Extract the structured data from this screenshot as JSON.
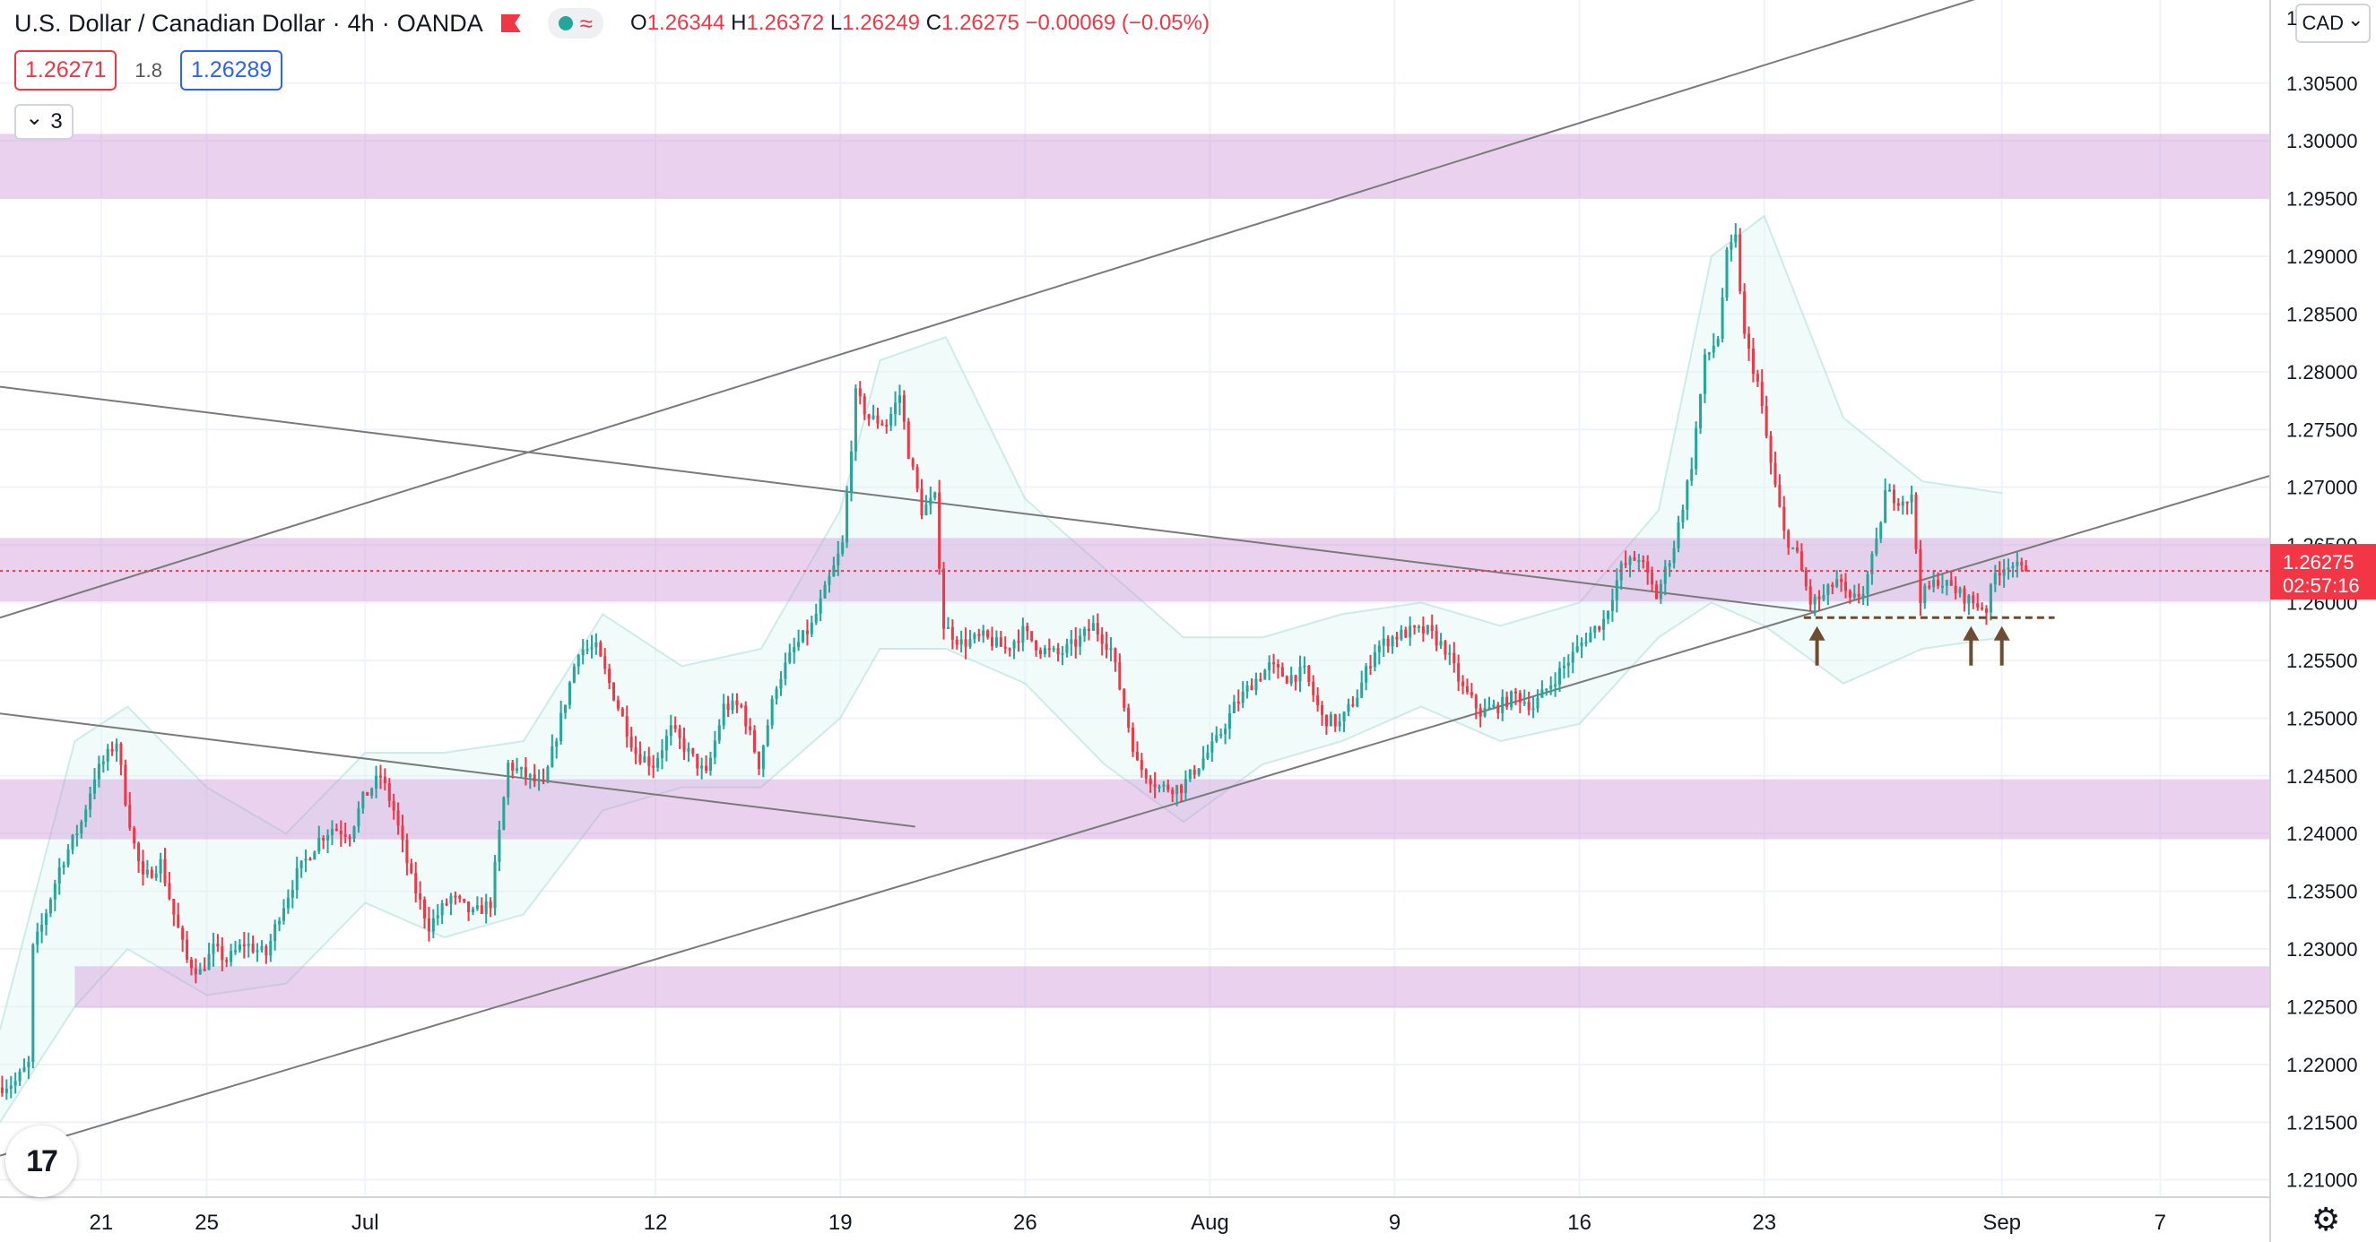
{
  "header": {
    "symbol_name": "U.S. Dollar / Canadian Dollar",
    "sep": "·",
    "interval": "4h",
    "broker": "OANDA",
    "wave_glyph": "≈",
    "ohlc": {
      "o_label": "O",
      "o": "1.26344",
      "h_label": "H",
      "h": "1.26372",
      "l_label": "L",
      "l": "1.26249",
      "c_label": "C",
      "c": "1.26275",
      "change": "−0.00069 (−0.05%)"
    }
  },
  "trade": {
    "sell": "1.26271",
    "spread": "1.8",
    "buy": "1.26289"
  },
  "indicators_toggle": {
    "chevron": "⌄",
    "count": "3"
  },
  "currency_button": {
    "label": "CAD",
    "chevron": "⌄",
    "edge_digit": "1"
  },
  "price_tag": {
    "price": "1.26275",
    "countdown": "02:57:16"
  },
  "colors": {
    "up": "#26a69a",
    "down": "#f23645",
    "zone": "#ce93d8",
    "channel": "#7a7a7a",
    "bollinger": "#b2dfdb",
    "support": "#6d4c2f",
    "price_line": "#f23645"
  },
  "chart_data": {
    "type": "candlestick",
    "x_tick_labels": [
      "21",
      "25",
      "Jul",
      "12",
      "19",
      "26",
      "Aug",
      "9",
      "16",
      "23",
      "Sep",
      "7"
    ],
    "x_tick_dates": [
      "2021-06-21",
      "2021-06-25",
      "2021-07-01",
      "2021-07-12",
      "2021-07-19",
      "2021-07-26",
      "2021-08-02",
      "2021-08-09",
      "2021-08-16",
      "2021-08-23",
      "2021-09-01",
      "2021-09-07"
    ],
    "y_tick_labels": [
      "1.30500",
      "1.30000",
      "1.29500",
      "1.29000",
      "1.28500",
      "1.28000",
      "1.27500",
      "1.27000",
      "1.26500",
      "1.26000",
      "1.25500",
      "1.25000",
      "1.24500",
      "1.24000",
      "1.23500",
      "1.23000",
      "1.22500",
      "1.22000",
      "1.21500",
      "1.21000"
    ],
    "ylim": [
      1.2085,
      1.3122
    ],
    "xlim": [
      "2021-06-17T04:00",
      "2021-09-11T04:00"
    ],
    "last_price": 1.26275,
    "zones": [
      {
        "from": 1.295,
        "to": 1.3006,
        "start": "2021-06-17"
      },
      {
        "from": 1.2601,
        "to": 1.2656,
        "start": "2021-06-17"
      },
      {
        "from": 1.2395,
        "to": 1.2447,
        "start": "2021-06-17"
      },
      {
        "from": 1.2249,
        "to": 1.2285,
        "start": "2021-06-20"
      }
    ],
    "trendlines": [
      {
        "from": [
          "2021-06-17T04:00",
          1.2121
        ],
        "to": [
          "2021-09-11T04:00",
          1.271
        ],
        "role": "channel-support"
      },
      {
        "from": [
          "2021-06-17T04:00",
          1.2587
        ],
        "to": [
          "2021-09-01T00:00",
          1.313
        ],
        "role": "channel-resistance"
      },
      {
        "from": [
          "2021-06-17T04:00",
          1.2787
        ],
        "to": [
          "2021-08-25T00:00",
          1.2592
        ],
        "role": "descending"
      },
      {
        "from": [
          "2021-06-17T04:00",
          1.2504
        ],
        "to": [
          "2021-07-21T20:00",
          1.2406
        ],
        "role": "descending-lower"
      }
    ],
    "support_level": {
      "value": 1.2587,
      "from": "2021-08-24T12:00",
      "to": "2021-09-03T00:00"
    },
    "arrows": [
      {
        "time": "2021-08-25T00:00",
        "price": 1.2575
      },
      {
        "time": "2021-08-30T20:00",
        "price": 1.2575
      },
      {
        "time": "2021-09-01T00:00",
        "price": 1.2575
      }
    ],
    "candle_interval_hours": 4,
    "path_start": "2021-06-17T04:00",
    "close_path": [
      [
        "2021-06-17T04:00",
        1.218
      ],
      [
        "2021-06-17T20:00",
        1.2185
      ],
      [
        "2021-06-18T08:00",
        1.22
      ],
      [
        "2021-06-18T12:00",
        1.23
      ],
      [
        "2021-06-18T20:00",
        1.232
      ],
      [
        "2021-06-19T12:00",
        1.237
      ],
      [
        "2021-06-20T08:00",
        1.241
      ],
      [
        "2021-06-20T20:00",
        1.245
      ],
      [
        "2021-06-21T16:00",
        1.248
      ],
      [
        "2021-06-22T00:00",
        1.243
      ],
      [
        "2021-06-22T08:00",
        1.239
      ],
      [
        "2021-06-22T16:00",
        1.236
      ],
      [
        "2021-06-23T08:00",
        1.2375
      ],
      [
        "2021-06-23T20:00",
        1.233
      ],
      [
        "2021-06-24T08:00",
        1.229
      ],
      [
        "2021-06-24T20:00",
        1.228
      ],
      [
        "2021-06-25T08:00",
        1.23
      ],
      [
        "2021-06-25T20:00",
        1.229
      ],
      [
        "2021-06-26T12:00",
        1.2305
      ],
      [
        "2021-06-27T08:00",
        1.2295
      ],
      [
        "2021-06-27T20:00",
        1.233
      ],
      [
        "2021-06-28T12:00",
        1.2365
      ],
      [
        "2021-06-29T08:00",
        1.2395
      ],
      [
        "2021-06-29T20:00",
        1.2405
      ],
      [
        "2021-06-30T12:00",
        1.24
      ],
      [
        "2021-07-01T00:00",
        1.243
      ],
      [
        "2021-07-01T16:00",
        1.245
      ],
      [
        "2021-07-02T04:00",
        1.242
      ],
      [
        "2021-07-02T20:00",
        1.236
      ],
      [
        "2021-07-03T12:00",
        1.232
      ],
      [
        "2021-07-04T08:00",
        1.2345
      ],
      [
        "2021-07-05T04:00",
        1.233
      ],
      [
        "2021-07-05T20:00",
        1.234
      ],
      [
        "2021-07-06T12:00",
        1.246
      ],
      [
        "2021-07-07T04:00",
        1.245
      ],
      [
        "2021-07-07T20:00",
        1.244
      ],
      [
        "2021-07-08T12:00",
        1.25
      ],
      [
        "2021-07-09T04:00",
        1.256
      ],
      [
        "2021-07-09T20:00",
        1.256
      ],
      [
        "2021-07-10T12:00",
        1.252
      ],
      [
        "2021-07-11T08:00",
        1.247
      ],
      [
        "2021-07-12T00:00",
        1.246
      ],
      [
        "2021-07-12T16:00",
        1.249
      ],
      [
        "2021-07-13T08:00",
        1.247
      ],
      [
        "2021-07-14T00:00",
        1.245
      ],
      [
        "2021-07-14T16:00",
        1.251
      ],
      [
        "2021-07-15T08:00",
        1.251
      ],
      [
        "2021-07-16T00:00",
        1.246
      ],
      [
        "2021-07-16T16:00",
        1.253
      ],
      [
        "2021-07-17T08:00",
        1.256
      ],
      [
        "2021-07-18T00:00",
        1.258
      ],
      [
        "2021-07-18T16:00",
        1.262
      ],
      [
        "2021-07-19T04:00",
        1.265
      ],
      [
        "2021-07-19T16:00",
        1.278
      ],
      [
        "2021-07-20T04:00",
        1.276
      ],
      [
        "2021-07-20T20:00",
        1.2755
      ],
      [
        "2021-07-21T08:00",
        1.278
      ],
      [
        "2021-07-21T16:00",
        1.273
      ],
      [
        "2021-07-22T04:00",
        1.268
      ],
      [
        "2021-07-22T16:00",
        1.269
      ],
      [
        "2021-07-23T00:00",
        1.258
      ],
      [
        "2021-07-23T16:00",
        1.2565
      ],
      [
        "2021-07-24T12:00",
        1.257
      ],
      [
        "2021-07-25T08:00",
        1.256
      ],
      [
        "2021-07-26T00:00",
        1.2575
      ],
      [
        "2021-07-26T16:00",
        1.256
      ],
      [
        "2021-07-27T08:00",
        1.2555
      ],
      [
        "2021-07-28T00:00",
        1.2565
      ],
      [
        "2021-07-28T16:00",
        1.258
      ],
      [
        "2021-07-29T08:00",
        1.256
      ],
      [
        "2021-07-29T20:00",
        1.251
      ],
      [
        "2021-07-30T08:00",
        1.246
      ],
      [
        "2021-07-31T04:00",
        1.244
      ],
      [
        "2021-08-01T00:00",
        1.244
      ],
      [
        "2021-08-01T16:00",
        1.246
      ],
      [
        "2021-08-02T08:00",
        1.248
      ],
      [
        "2021-08-03T00:00",
        1.251
      ],
      [
        "2021-08-03T16:00",
        1.253
      ],
      [
        "2021-08-04T08:00",
        1.2545
      ],
      [
        "2021-08-05T00:00",
        1.2535
      ],
      [
        "2021-08-05T16:00",
        1.254
      ],
      [
        "2021-08-06T08:00",
        1.25
      ],
      [
        "2021-08-07T00:00",
        1.2495
      ],
      [
        "2021-08-07T16:00",
        1.252
      ],
      [
        "2021-08-08T08:00",
        1.256
      ],
      [
        "2021-08-09T00:00",
        1.257
      ],
      [
        "2021-08-09T16:00",
        1.2575
      ],
      [
        "2021-08-10T08:00",
        1.2575
      ],
      [
        "2021-08-11T00:00",
        1.256
      ],
      [
        "2021-08-11T16:00",
        1.2525
      ],
      [
        "2021-08-12T08:00",
        1.2505
      ],
      [
        "2021-08-13T00:00",
        1.251
      ],
      [
        "2021-08-13T16:00",
        1.252
      ],
      [
        "2021-08-14T08:00",
        1.251
      ],
      [
        "2021-08-15T00:00",
        1.253
      ],
      [
        "2021-08-15T16:00",
        1.255
      ],
      [
        "2021-08-16T08:00",
        1.257
      ],
      [
        "2021-08-17T00:00",
        1.2585
      ],
      [
        "2021-08-17T16:00",
        1.263
      ],
      [
        "2021-08-18T08:00",
        1.264
      ],
      [
        "2021-08-19T00:00",
        1.2605
      ],
      [
        "2021-08-19T16:00",
        1.265
      ],
      [
        "2021-08-20T08:00",
        1.272
      ],
      [
        "2021-08-20T20:00",
        1.281
      ],
      [
        "2021-08-21T08:00",
        1.283
      ],
      [
        "2021-08-21T16:00",
        1.29
      ],
      [
        "2021-08-22T00:00",
        1.2915
      ],
      [
        "2021-08-22T08:00",
        1.283
      ],
      [
        "2021-08-22T20:00",
        1.279
      ],
      [
        "2021-08-23T08:00",
        1.272
      ],
      [
        "2021-08-23T20:00",
        1.266
      ],
      [
        "2021-08-24T08:00",
        1.264
      ],
      [
        "2021-08-24T20:00",
        1.26
      ],
      [
        "2021-08-25T08:00",
        1.2605
      ],
      [
        "2021-08-25T20:00",
        1.262
      ],
      [
        "2021-08-26T08:00",
        1.26
      ],
      [
        "2021-08-26T20:00",
        1.261
      ],
      [
        "2021-08-27T08:00",
        1.265
      ],
      [
        "2021-08-27T16:00",
        1.2695
      ],
      [
        "2021-08-28T04:00",
        1.269
      ],
      [
        "2021-08-28T16:00",
        1.269
      ],
      [
        "2021-08-29T00:00",
        1.2605
      ],
      [
        "2021-08-29T16:00",
        1.262
      ],
      [
        "2021-08-30T08:00",
        1.261
      ],
      [
        "2021-08-31T00:00",
        1.26
      ],
      [
        "2021-08-31T12:00",
        1.2595
      ],
      [
        "2021-08-31T20:00",
        1.2625
      ],
      [
        "2021-09-01T08:00",
        1.2635
      ],
      [
        "2021-09-01T20:00",
        1.26275
      ]
    ],
    "bollinger_bands": {
      "upper": [
        [
          "2021-06-17T04:00",
          1.223
        ],
        [
          "2021-06-20T00:00",
          1.248
        ],
        [
          "2021-06-22T00:00",
          1.251
        ],
        [
          "2021-06-25T00:00",
          1.244
        ],
        [
          "2021-06-28T00:00",
          1.24
        ],
        [
          "2021-07-01T00:00",
          1.247
        ],
        [
          "2021-07-04T00:00",
          1.247
        ],
        [
          "2021-07-07T00:00",
          1.248
        ],
        [
          "2021-07-10T00:00",
          1.259
        ],
        [
          "2021-07-13T00:00",
          1.2545
        ],
        [
          "2021-07-16T00:00",
          1.256
        ],
        [
          "2021-07-19T00:00",
          1.268
        ],
        [
          "2021-07-20T12:00",
          1.281
        ],
        [
          "2021-07-23T00:00",
          1.283
        ],
        [
          "2021-07-26T00:00",
          1.269
        ],
        [
          "2021-07-29T00:00",
          1.263
        ],
        [
          "2021-08-01T00:00",
          1.257
        ],
        [
          "2021-08-04T00:00",
          1.257
        ],
        [
          "2021-08-07T00:00",
          1.259
        ],
        [
          "2021-08-10T00:00",
          1.26
        ],
        [
          "2021-08-13T00:00",
          1.258
        ],
        [
          "2021-08-16T00:00",
          1.26
        ],
        [
          "2021-08-19T00:00",
          1.268
        ],
        [
          "2021-08-21T00:00",
          1.29
        ],
        [
          "2021-08-23T00:00",
          1.2935
        ],
        [
          "2021-08-26T00:00",
          1.276
        ],
        [
          "2021-08-29T00:00",
          1.2705
        ],
        [
          "2021-09-01T00:00",
          1.2695
        ]
      ],
      "lower": [
        [
          "2021-06-17T04:00",
          1.215
        ],
        [
          "2021-06-20T00:00",
          1.225
        ],
        [
          "2021-06-22T00:00",
          1.23
        ],
        [
          "2021-06-25T00:00",
          1.226
        ],
        [
          "2021-06-28T00:00",
          1.227
        ],
        [
          "2021-07-01T00:00",
          1.234
        ],
        [
          "2021-07-04T00:00",
          1.231
        ],
        [
          "2021-07-07T00:00",
          1.233
        ],
        [
          "2021-07-10T00:00",
          1.242
        ],
        [
          "2021-07-13T00:00",
          1.244
        ],
        [
          "2021-07-16T00:00",
          1.244
        ],
        [
          "2021-07-19T00:00",
          1.25
        ],
        [
          "2021-07-20T12:00",
          1.256
        ],
        [
          "2021-07-23T00:00",
          1.256
        ],
        [
          "2021-07-26T00:00",
          1.253
        ],
        [
          "2021-07-29T00:00",
          1.246
        ],
        [
          "2021-08-01T00:00",
          1.241
        ],
        [
          "2021-08-04T00:00",
          1.246
        ],
        [
          "2021-08-07T00:00",
          1.248
        ],
        [
          "2021-08-10T00:00",
          1.251
        ],
        [
          "2021-08-13T00:00",
          1.248
        ],
        [
          "2021-08-16T00:00",
          1.2495
        ],
        [
          "2021-08-19T00:00",
          1.257
        ],
        [
          "2021-08-21T00:00",
          1.26
        ],
        [
          "2021-08-23T00:00",
          1.258
        ],
        [
          "2021-08-26T00:00",
          1.253
        ],
        [
          "2021-08-29T00:00",
          1.256
        ],
        [
          "2021-09-01T00:00",
          1.257
        ]
      ]
    }
  }
}
